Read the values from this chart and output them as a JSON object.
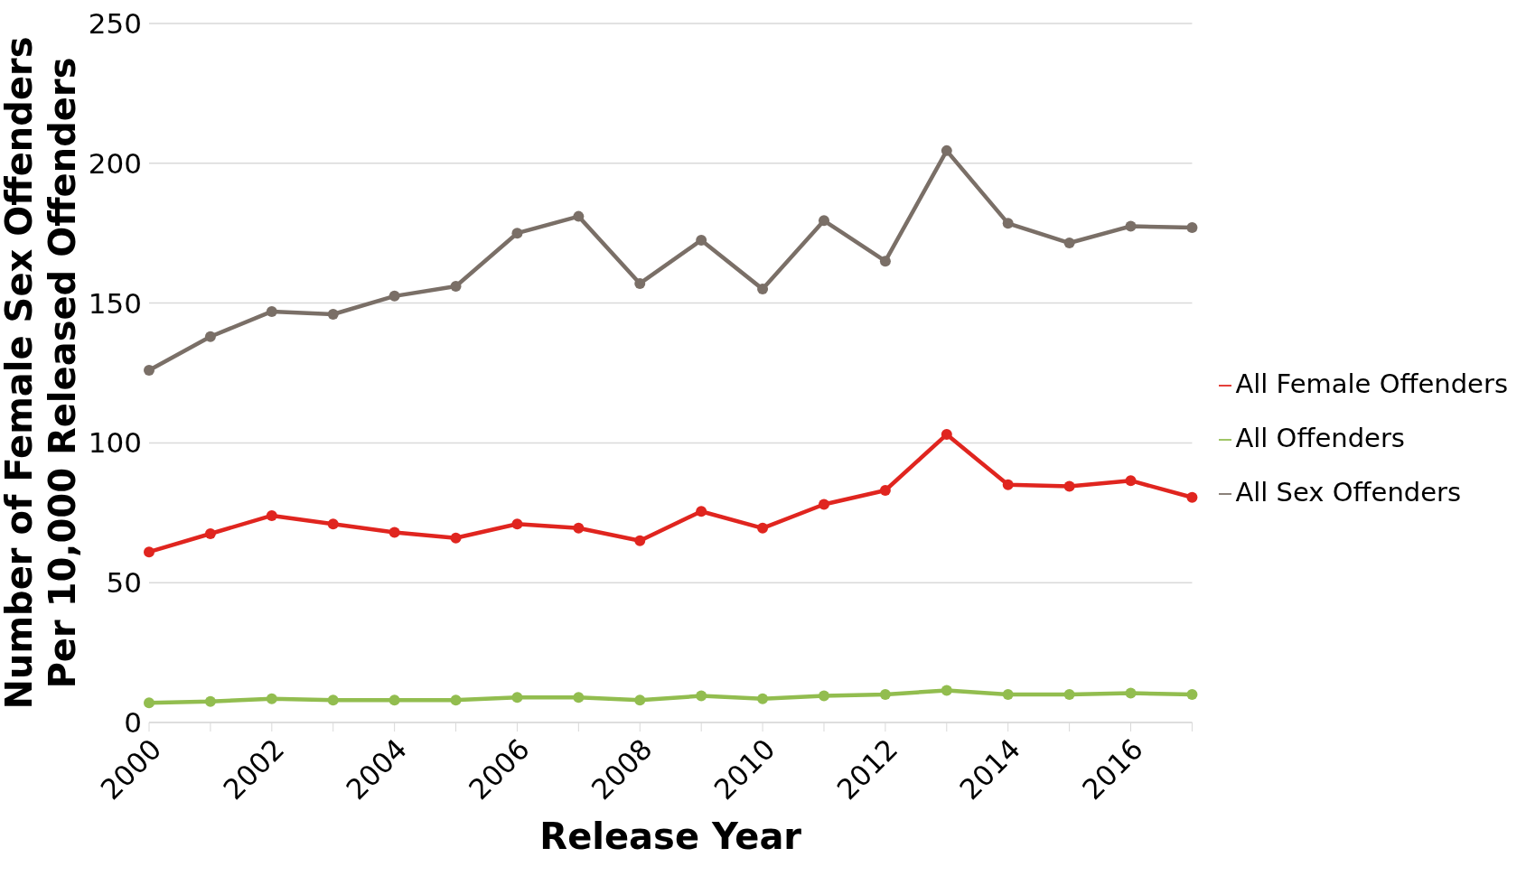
{
  "chart_data": {
    "type": "line",
    "xlabel": "Release Year",
    "ylabel": "Number of Female Sex Offenders Per 10,000 Released Offenders",
    "categories": [
      "2000",
      null,
      "2002",
      null,
      "2004",
      null,
      "2006",
      null,
      "2008",
      null,
      "2010",
      null,
      "2012",
      null,
      "2014",
      null,
      "2016",
      null
    ],
    "series": [
      {
        "name": "All Female Offenders",
        "color": "#e0251f",
        "values": [
          61,
          67.5,
          74,
          71,
          68,
          66,
          71,
          69.5,
          65,
          75.5,
          69.5,
          78,
          83,
          103,
          85,
          84.5,
          86.5,
          80.5
        ]
      },
      {
        "name": "All Sex Offenders",
        "color": "#7a6f67",
        "values": [
          126,
          138,
          147,
          146,
          152.5,
          156,
          175,
          181,
          157,
          172.5,
          155,
          179.5,
          165,
          204.5,
          178.5,
          171.5,
          177.5,
          177
        ]
      },
      {
        "name": "All Offenders",
        "color": "#92bd4f",
        "values": [
          7,
          7.5,
          8.5,
          8,
          8,
          8,
          9,
          9,
          8,
          9.5,
          8.5,
          9.5,
          10,
          11.5,
          10,
          10,
          10.5,
          10
        ]
      }
    ],
    "ylim": [
      0,
      250
    ],
    "yticks": [
      0,
      50,
      100,
      150,
      200,
      250
    ],
    "grid": "y",
    "legend": "right",
    "marker": "circle",
    "line_style": "solid"
  }
}
